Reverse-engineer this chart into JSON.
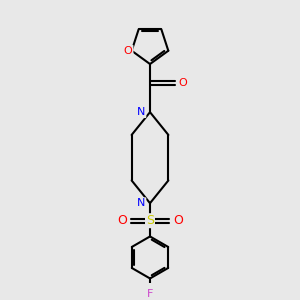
{
  "background_color": "#e8e8e8",
  "bond_color": "#000000",
  "atom_colors": {
    "O": "#ff0000",
    "N": "#0000ff",
    "S": "#cccc00",
    "F": "#cc44cc",
    "C": "#000000"
  },
  "line_width": 1.5,
  "figsize": [
    3.0,
    3.0
  ],
  "dpi": 100
}
